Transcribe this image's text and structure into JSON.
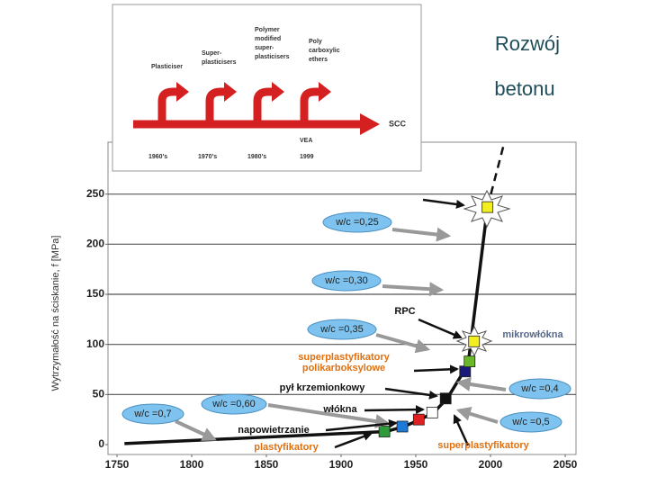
{
  "title": [
    "Rozwój",
    "betonu"
  ],
  "chart_data": {
    "type": "line",
    "y_label": "Wytrzymałość na ściskanie, f [MPa]",
    "xlim": [
      1750,
      2050
    ],
    "xticks": [
      1750,
      1800,
      1850,
      1900,
      1950,
      2000,
      2050
    ],
    "ylim": [
      0,
      300
    ],
    "yticks": [
      0,
      50,
      100,
      150,
      200,
      250
    ],
    "grid": true,
    "series": [
      {
        "color": "#111111",
        "style": "solid",
        "x": [
          1755,
          1930,
          1942,
          1953,
          1962,
          1971,
          1985,
          1998
        ],
        "values": [
          1,
          13,
          18,
          25,
          32,
          46,
          80,
          237
        ]
      },
      {
        "color": "#111111",
        "style": "dashed",
        "x": [
          1998,
          2009
        ],
        "values": [
          237,
          300
        ]
      }
    ],
    "markers": {
      "x": [
        1929,
        1941,
        1952,
        1961,
        1970,
        1983,
        1986,
        1989,
        1998
      ],
      "values": [
        13,
        18,
        25,
        32,
        46,
        73,
        83,
        103,
        237
      ],
      "colors": [
        "#2e9a3a",
        "#1e7ad8",
        "#e02020",
        "#ffffff",
        "#111111",
        "#1a1a7a",
        "#6ab82a",
        "#f2ee20",
        "#f2ee20"
      ]
    },
    "annotations": [
      "w/c =0,25",
      "w/c =0,30",
      "w/c =0,35",
      "w/c =0,60",
      "w/c =0,7",
      "w/c =0,4",
      "w/c =0,5",
      "RPC",
      "mikrowłókna",
      "superplastyfikatory",
      "polikarboksylowe",
      "pył krzemionkowy",
      "włókna",
      "napowietrzanie",
      "plastyfikatory",
      "superplastyfikatory"
    ]
  },
  "inset": {
    "labels": [
      "Plasticiser",
      "Super-",
      "plasticisers",
      "Polymer",
      "modified",
      "super-",
      "plasticisers",
      "Poly",
      "carboxylic",
      "ethers",
      "SCC",
      "VEA"
    ],
    "years": [
      "1960's",
      "1970's",
      "1980's",
      "1999"
    ]
  }
}
